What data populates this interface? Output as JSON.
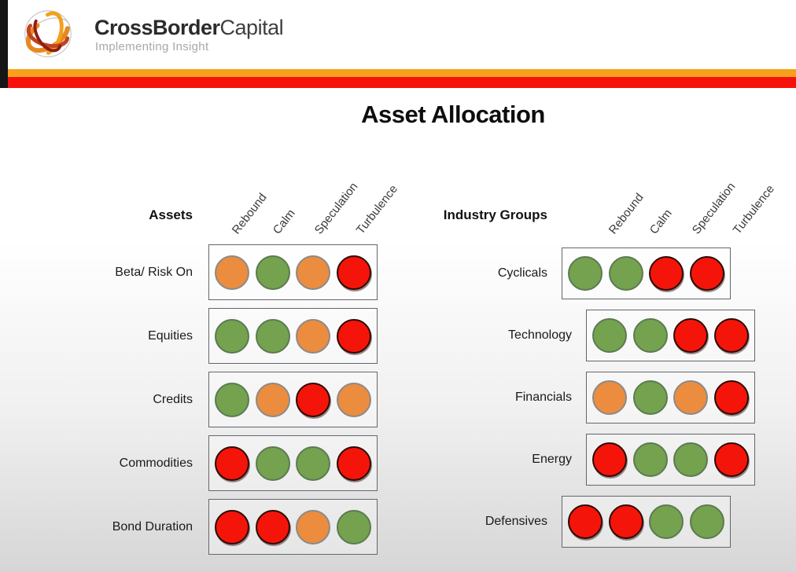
{
  "logo": {
    "brand_bold": "CrossBorder",
    "brand_light": "Capital",
    "tagline": "Implementing Insight"
  },
  "title": "Asset Allocation",
  "regimes": [
    "Rebound",
    "Calm",
    "Speculation",
    "Turbulence"
  ],
  "colors": {
    "green": "#74A24F",
    "orange": "#EC8C3E",
    "red": "#F5140A",
    "stripe_orange": "#F7A01B",
    "stripe_red": "#F5120D"
  },
  "matrices": [
    {
      "header": "Assets",
      "rows": [
        {
          "label": "Beta/ Risk On",
          "signals": [
            "orange",
            "green",
            "orange",
            "red"
          ]
        },
        {
          "label": "Equities",
          "signals": [
            "green",
            "green",
            "orange",
            "red"
          ]
        },
        {
          "label": "Credits",
          "signals": [
            "green",
            "orange",
            "red",
            "orange"
          ]
        },
        {
          "label": "Commodities",
          "signals": [
            "red",
            "green",
            "green",
            "red"
          ]
        },
        {
          "label": "Bond Duration",
          "signals": [
            "red",
            "red",
            "orange",
            "green"
          ]
        }
      ]
    },
    {
      "header": "Industry Groups",
      "rows": [
        {
          "label": "Cyclicals",
          "signals": [
            "green",
            "green",
            "red",
            "red"
          ]
        },
        {
          "label": "Technology",
          "signals": [
            "green",
            "green",
            "red",
            "red"
          ]
        },
        {
          "label": "Financials",
          "signals": [
            "orange",
            "green",
            "orange",
            "red"
          ]
        },
        {
          "label": "Energy",
          "signals": [
            "red",
            "green",
            "green",
            "red"
          ]
        },
        {
          "label": "Defensives",
          "signals": [
            "red",
            "red",
            "green",
            "green"
          ]
        }
      ]
    }
  ]
}
